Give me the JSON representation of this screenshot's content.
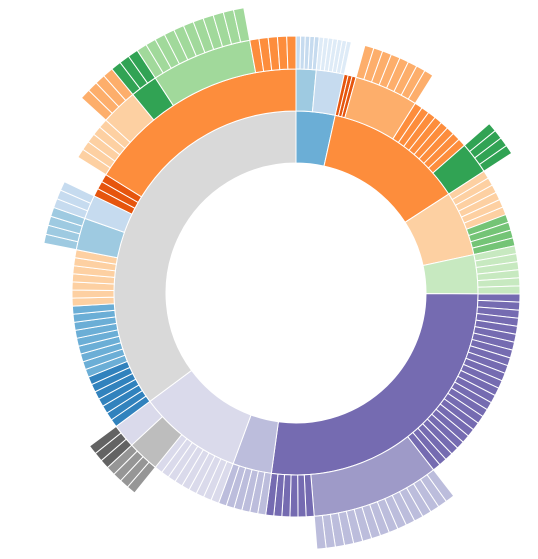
{
  "chart_data": {
    "type": "sunburst",
    "children": [
      {
        "color": "#6baed6",
        "children": [
          {
            "color": "#9ecae1",
            "children": [
              {
                "color": "#c6dbef",
                "values": [
                  1,
                  1,
                  1,
                  1,
                  1
                ]
              }
            ]
          },
          {
            "color": "#c6dbef",
            "children": [
              {
                "color": "#deebf7",
                "values": [
                  1,
                  1,
                  1,
                  1,
                  1,
                  1,
                  1
                ]
              }
            ]
          }
        ]
      },
      {
        "color": "#fd8d3c",
        "children": [
          {
            "color": "#e6550d",
            "values": [
              1,
              1,
              1
            ]
          },
          {
            "color": "#fdae6b",
            "children": [
              {
                "color": "#fdae6b",
                "values": [
                  2,
                  2,
                  2,
                  2,
                  2,
                  2,
                  2,
                  2
                ]
              }
            ]
          },
          {
            "color": "#fd8d3c",
            "values": [
              2,
              2,
              2,
              2,
              2,
              2,
              2,
              2
            ]
          },
          {
            "color": "#31a354",
            "children": [
              {
                "color": "#31a354",
                "values": [
                  2,
                  2,
                  2,
                  2
                ]
              }
            ]
          }
        ]
      },
      {
        "color": "#fdd0a2",
        "children": [
          {
            "color": "#fdd0a2",
            "values": [
              2,
              2,
              2,
              2,
              2,
              2
            ]
          },
          {
            "color": "#74c476",
            "values": [
              2,
              2,
              2,
              2
            ]
          }
        ]
      },
      {
        "color": "#c7e9c0",
        "children": [
          {
            "color": "#c7e9c0",
            "values": [
              2,
              2,
              2,
              2,
              2,
              2
            ]
          }
        ]
      },
      {
        "color": "#756bb1",
        "children": [
          {
            "color": "#756bb1",
            "values": [
              2,
              2,
              2,
              2,
              2,
              2,
              2,
              2,
              2,
              2,
              2,
              2,
              2,
              2,
              2,
              2,
              2,
              2,
              2,
              2,
              2,
              2,
              2,
              2,
              2
            ]
          },
          {
            "color": "#9e9ac8",
            "children": [
              {
                "color": "#bcbddc",
                "values": [
                  2,
                  2,
                  2,
                  2,
                  2,
                  2,
                  2,
                  2,
                  2,
                  2,
                  2,
                  2,
                  2,
                  2,
                  2,
                  2
                ]
              }
            ]
          },
          {
            "color": "#756bb1",
            "values": [
              2,
              2,
              2,
              2,
              2,
              2
            ]
          }
        ]
      },
      {
        "color": "#bcbddc",
        "children": [
          {
            "color": "#bcbddc",
            "values": [
              2,
              2,
              2,
              2,
              2,
              2
            ]
          }
        ]
      },
      {
        "color": "#dadaeb",
        "children": [
          {
            "color": "#dadaeb",
            "values": [
              2,
              2,
              2,
              2,
              2,
              2,
              2,
              2,
              2
            ]
          },
          {
            "color": "#bdbdbd",
            "children": [
              {
                "color": "#969696",
                "values": [
                  2,
                  2,
                  2,
                  2
                ]
              }
            ]
          },
          {
            "color": "#dadaeb",
            "children": [
              {
                "color": "#636363",
                "values": [
                  2,
                  2,
                  2
                ]
              }
            ]
          }
        ]
      },
      {
        "color": "#d9d9d9",
        "children": [
          {
            "color": "#3182bd",
            "values": [
              2,
              2,
              2,
              2,
              2,
              2,
              2
            ]
          },
          {
            "color": "#6baed6",
            "values": [
              2,
              2,
              2,
              2,
              2,
              2,
              2,
              2,
              2
            ]
          },
          {
            "color": "#fdd0a2",
            "values": [
              2,
              2,
              2,
              2,
              2,
              2,
              2
            ]
          },
          {
            "color": "#9ecae1",
            "children": [
              {
                "color": "#9ecae1",
                "values": [
                  2,
                  2,
                  2,
                  2
                ]
              }
            ]
          },
          {
            "color": "#c6dbef",
            "children": [
              {
                "color": "#c6dbef",
                "values": [
                  2,
                  2,
                  2
                ]
              }
            ]
          },
          {
            "color": "#e6550d",
            "values": [
              2,
              2,
              2
            ]
          },
          {
            "color": "#fd8d3c",
            "children": [
              {
                "color": "#fdd0a2",
                "values": [
                  2,
                  2,
                  2,
                  2,
                  2
                ]
              },
              {
                "color": "#fdd0a2",
                "children": [
                  {
                    "color": "#fdae6b",
                    "values": [
                      2,
                      2,
                      2,
                      2
                    ]
                  }
                ]
              },
              {
                "color": "#31a354",
                "children": [
                  {
                    "color": "#31a354",
                    "values": [
                      2,
                      2,
                      2
                    ]
                  }
                ]
              },
              {
                "color": "#a1d99b",
                "children": [
                  {
                    "color": "#a1d99b",
                    "values": [
                      2,
                      2,
                      2,
                      2,
                      2,
                      2,
                      2,
                      2,
                      2,
                      2,
                      2
                    ]
                  }
                ]
              },
              {
                "color": "#fd8d3c",
                "values": [
                  2,
                  2,
                  2,
                  2,
                  2
                ]
              }
            ]
          }
        ]
      }
    ]
  }
}
